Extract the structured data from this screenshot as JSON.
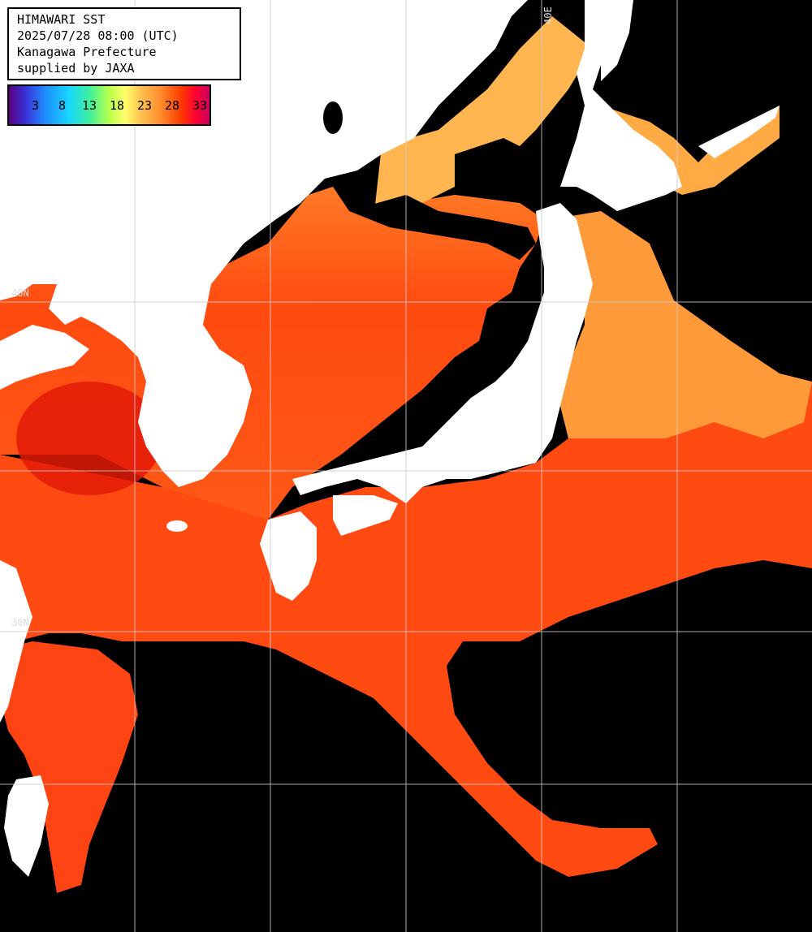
{
  "title_lines": [
    "HIMAWARI SST",
    "2025/07/28 08:00 (UTC)",
    "Kanagawa Prefecture",
    "supplied by JAXA"
  ],
  "legend": {
    "ticks": [
      "3",
      "8",
      "13",
      "18",
      "23",
      "28",
      "33"
    ]
  },
  "grid_labels": {
    "lat40": "40N",
    "lat30": "30N",
    "lon140": "40E"
  },
  "colors": {
    "land": "#ffffff",
    "cloud": "#000000",
    "grid": "#cccccc",
    "sea_warm": "#ff4a12",
    "sea_hot": "#e41808",
    "sea_mild": "#ff8a2e",
    "sea_cool": "#ffc25a"
  }
}
